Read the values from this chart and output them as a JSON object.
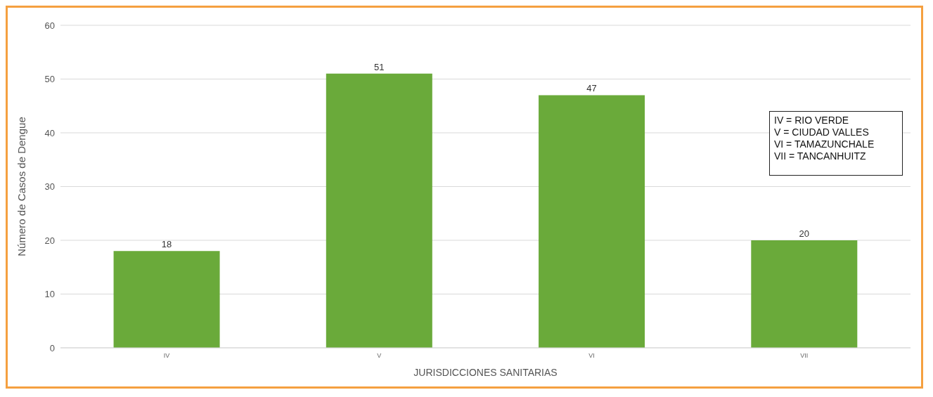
{
  "chart_data": {
    "type": "bar",
    "xlabel": "JURISDICCIONES SANITARIAS",
    "ylabel": "Número de Casos de Dengue",
    "categories": [
      "IV",
      "V",
      "VI",
      "VII"
    ],
    "values": [
      18,
      51,
      47,
      20
    ],
    "color": "#6aaa3a",
    "ylim": [
      0,
      60
    ],
    "yticks": [
      0,
      10,
      20,
      30,
      40,
      50,
      60
    ],
    "grid": "y",
    "data_labels": true,
    "annotations": [
      "IV = RIO VERDE",
      "V = CIUDAD VALLES",
      "VI = TAMAZUNCHALE",
      "VII = TANCANHUITZ"
    ]
  }
}
